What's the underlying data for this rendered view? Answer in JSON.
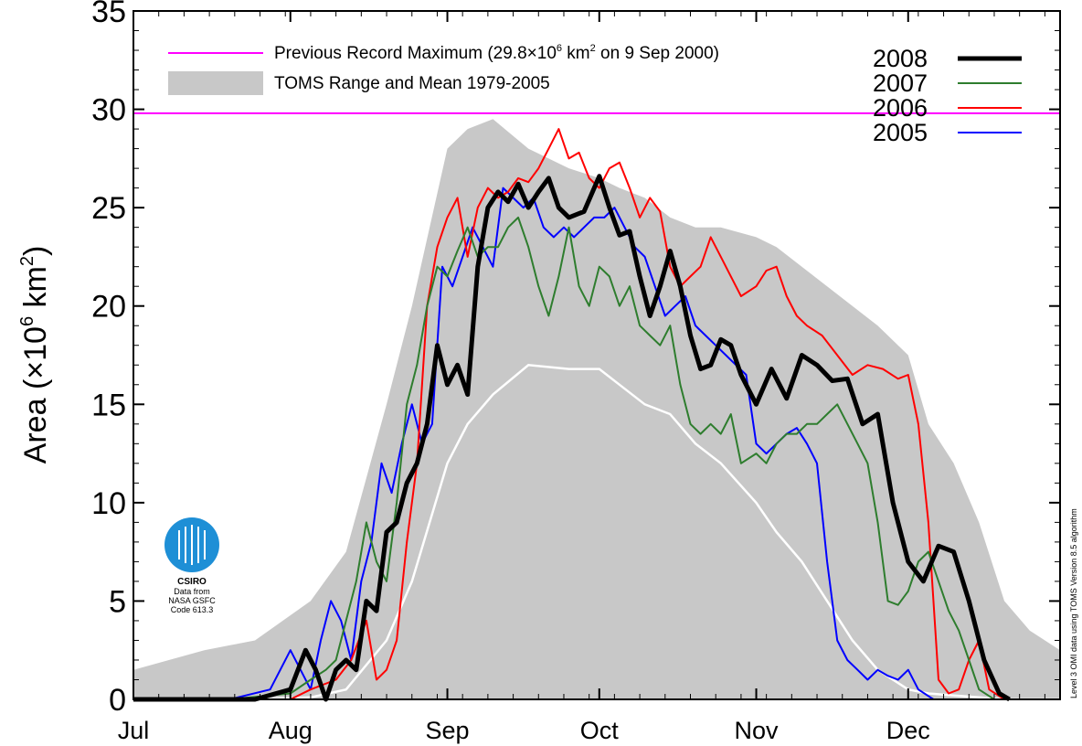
{
  "chart_data": {
    "type": "line",
    "title": "",
    "xlabel": "",
    "ylabel": "Area (×10⁶ km²)",
    "ylabel_parts": {
      "pre": "Area (×10",
      "exp1": "6",
      "mid": " km",
      "exp2": "2",
      "post": ")"
    },
    "ylim": [
      0,
      35
    ],
    "yticks": [
      "0",
      "5",
      "10",
      "15",
      "20",
      "25",
      "30",
      "35"
    ],
    "xlim": [
      "2008-07-01",
      "2008-12-31"
    ],
    "months": [
      {
        "label": "Jul",
        "date": "2008-07-01"
      },
      {
        "label": "Aug",
        "date": "2008-08-01"
      },
      {
        "label": "Sep",
        "date": "2008-09-01"
      },
      {
        "label": "Oct",
        "date": "2008-10-01"
      },
      {
        "label": "Nov",
        "date": "2008-11-01"
      },
      {
        "label": "Dec",
        "date": "2008-12-01"
      }
    ],
    "grid": false,
    "record_max": {
      "value": 29.8,
      "color": "#ff00ff",
      "label_parts": {
        "pre": "Previous Record Maximum (29.8×10",
        "exp1": "6",
        "mid": "  km",
        "exp2": "2",
        "post": " on 9 Sep 2000)"
      }
    },
    "toms_band": {
      "label": "TOMS Range and Mean 1979-2005",
      "color": "#c8c8c8",
      "mean_color": "#ffffff",
      "x": [
        "2008-07-01",
        "2008-07-15",
        "2008-07-25",
        "2008-08-05",
        "2008-08-12",
        "2008-08-20",
        "2008-08-25",
        "2008-09-01",
        "2008-09-05",
        "2008-09-10",
        "2008-09-17",
        "2008-09-25",
        "2008-10-01",
        "2008-10-05",
        "2008-10-10",
        "2008-10-15",
        "2008-10-20",
        "2008-10-25",
        "2008-11-01",
        "2008-11-05",
        "2008-11-10",
        "2008-11-15",
        "2008-11-20",
        "2008-11-25",
        "2008-12-01",
        "2008-12-05",
        "2008-12-10",
        "2008-12-15",
        "2008-12-20",
        "2008-12-25",
        "2008-12-31"
      ],
      "upper": [
        1.5,
        2.5,
        3,
        5,
        7.5,
        15,
        20,
        28,
        29,
        29.5,
        28,
        27,
        26.5,
        26,
        25.5,
        24.5,
        24,
        24,
        23.5,
        23,
        22,
        21,
        20,
        19,
        17.5,
        14,
        12,
        9,
        5,
        3.5,
        2.5
      ],
      "lower": [
        0,
        0,
        0,
        0,
        0,
        0,
        0,
        0,
        0,
        0,
        0,
        0,
        0,
        0,
        0,
        0,
        0,
        0,
        0,
        0,
        0,
        0,
        0,
        0,
        0,
        0,
        0,
        0,
        0,
        0,
        0
      ],
      "mean": [
        0,
        0,
        0,
        0.1,
        0.5,
        3,
        6,
        12,
        14,
        15.5,
        17,
        16.8,
        16.8,
        16,
        15,
        14.5,
        13,
        12,
        10,
        8.5,
        7,
        5,
        3,
        1.5,
        0.5,
        0.3,
        0.2,
        0.1,
        0,
        0,
        0
      ]
    },
    "series": [
      {
        "name": "2008",
        "color": "#000000",
        "width": 5,
        "x": [
          "2008-07-01",
          "2008-07-15",
          "2008-07-25",
          "2008-08-01",
          "2008-08-04",
          "2008-08-06",
          "2008-08-08",
          "2008-08-10",
          "2008-08-12",
          "2008-08-14",
          "2008-08-16",
          "2008-08-18",
          "2008-08-20",
          "2008-08-22",
          "2008-08-24",
          "2008-08-26",
          "2008-08-28",
          "2008-08-30",
          "2008-09-01",
          "2008-09-03",
          "2008-09-05",
          "2008-09-07",
          "2008-09-09",
          "2008-09-11",
          "2008-09-13",
          "2008-09-15",
          "2008-09-17",
          "2008-09-19",
          "2008-09-21",
          "2008-09-23",
          "2008-09-25",
          "2008-09-28",
          "2008-10-01",
          "2008-10-03",
          "2008-10-05",
          "2008-10-07",
          "2008-10-09",
          "2008-10-11",
          "2008-10-13",
          "2008-10-15",
          "2008-10-17",
          "2008-10-19",
          "2008-10-21",
          "2008-10-23",
          "2008-10-25",
          "2008-10-27",
          "2008-10-29",
          "2008-11-01",
          "2008-11-04",
          "2008-11-07",
          "2008-11-10",
          "2008-11-13",
          "2008-11-16",
          "2008-11-19",
          "2008-11-22",
          "2008-11-25",
          "2008-11-28",
          "2008-12-01",
          "2008-12-04",
          "2008-12-07",
          "2008-12-10",
          "2008-12-13",
          "2008-12-16",
          "2008-12-19",
          "2008-12-21"
        ],
        "values": [
          0,
          0,
          0,
          0.5,
          2.5,
          1.5,
          0,
          1.5,
          2,
          1.5,
          5,
          4.5,
          8.5,
          9,
          11,
          12,
          14,
          18,
          16,
          17,
          15.5,
          22,
          25,
          25.8,
          25.3,
          26.2,
          25,
          25.8,
          26.5,
          25,
          24.5,
          24.8,
          26.6,
          25,
          23.6,
          23.8,
          21.5,
          19.5,
          21,
          22.8,
          21,
          18.5,
          16.8,
          17,
          18.3,
          18,
          16.5,
          15,
          16.8,
          15.3,
          17.5,
          17,
          16.2,
          16.3,
          14,
          14.5,
          10,
          7,
          6,
          7.8,
          7.5,
          5,
          2,
          0.3,
          0
        ]
      },
      {
        "name": "2007",
        "color": "#2e7d2e",
        "width": 2,
        "x": [
          "2008-07-01",
          "2008-07-20",
          "2008-08-01",
          "2008-08-05",
          "2008-08-08",
          "2008-08-10",
          "2008-08-12",
          "2008-08-14",
          "2008-08-16",
          "2008-08-18",
          "2008-08-20",
          "2008-08-22",
          "2008-08-24",
          "2008-08-26",
          "2008-08-28",
          "2008-08-30",
          "2008-09-01",
          "2008-09-03",
          "2008-09-05",
          "2008-09-07",
          "2008-09-09",
          "2008-09-11",
          "2008-09-13",
          "2008-09-15",
          "2008-09-17",
          "2008-09-19",
          "2008-09-21",
          "2008-09-23",
          "2008-09-25",
          "2008-09-27",
          "2008-09-29",
          "2008-10-01",
          "2008-10-03",
          "2008-10-05",
          "2008-10-07",
          "2008-10-09",
          "2008-10-11",
          "2008-10-13",
          "2008-10-15",
          "2008-10-17",
          "2008-10-19",
          "2008-10-21",
          "2008-10-23",
          "2008-10-25",
          "2008-10-27",
          "2008-10-29",
          "2008-11-01",
          "2008-11-03",
          "2008-11-05",
          "2008-11-07",
          "2008-11-09",
          "2008-11-11",
          "2008-11-13",
          "2008-11-15",
          "2008-11-17",
          "2008-11-19",
          "2008-11-21",
          "2008-11-23",
          "2008-11-25",
          "2008-11-27",
          "2008-11-29",
          "2008-12-01",
          "2008-12-03",
          "2008-12-05",
          "2008-12-07",
          "2008-12-09",
          "2008-12-11",
          "2008-12-13",
          "2008-12-15",
          "2008-12-18"
        ],
        "values": [
          0,
          0,
          0.3,
          1,
          1.5,
          2,
          4,
          6,
          9,
          7,
          6,
          10,
          15,
          17,
          20,
          22,
          21.5,
          22.8,
          24,
          22.5,
          23,
          23,
          24,
          24.5,
          23,
          21,
          19.5,
          21.5,
          24,
          21,
          20,
          22,
          21.5,
          20,
          21,
          19,
          18.5,
          18,
          19,
          16,
          14,
          13.5,
          14,
          13.5,
          14.5,
          12,
          12.5,
          12,
          13,
          13.5,
          13.5,
          14,
          14,
          14.5,
          15,
          14,
          13,
          12,
          9,
          5,
          4.8,
          5.5,
          7,
          7.5,
          6,
          4.5,
          3.5,
          2,
          0.5,
          0
        ]
      },
      {
        "name": "2006",
        "color": "#ff0000",
        "width": 2,
        "x": [
          "2008-07-01",
          "2008-07-20",
          "2008-08-01",
          "2008-08-05",
          "2008-08-10",
          "2008-08-13",
          "2008-08-16",
          "2008-08-18",
          "2008-08-20",
          "2008-08-22",
          "2008-08-24",
          "2008-08-26",
          "2008-08-28",
          "2008-08-30",
          "2008-09-01",
          "2008-09-03",
          "2008-09-05",
          "2008-09-07",
          "2008-09-09",
          "2008-09-11",
          "2008-09-13",
          "2008-09-15",
          "2008-09-17",
          "2008-09-19",
          "2008-09-21",
          "2008-09-23",
          "2008-09-25",
          "2008-09-27",
          "2008-09-29",
          "2008-10-01",
          "2008-10-03",
          "2008-10-05",
          "2008-10-07",
          "2008-10-09",
          "2008-10-11",
          "2008-10-13",
          "2008-10-15",
          "2008-10-17",
          "2008-10-19",
          "2008-10-21",
          "2008-10-23",
          "2008-10-25",
          "2008-10-27",
          "2008-10-29",
          "2008-11-01",
          "2008-11-03",
          "2008-11-05",
          "2008-11-07",
          "2008-11-09",
          "2008-11-11",
          "2008-11-14",
          "2008-11-17",
          "2008-11-20",
          "2008-11-23",
          "2008-11-26",
          "2008-11-29",
          "2008-12-01",
          "2008-12-03",
          "2008-12-05",
          "2008-12-07",
          "2008-12-09",
          "2008-12-11",
          "2008-12-13",
          "2008-12-15",
          "2008-12-17",
          "2008-12-20"
        ],
        "values": [
          0,
          0,
          0,
          0.5,
          1,
          2,
          4,
          1,
          1.5,
          3,
          8,
          12,
          20,
          23,
          24.5,
          25.5,
          22.5,
          25,
          26,
          25.5,
          25.8,
          26.5,
          26.3,
          27,
          28,
          29,
          27.5,
          27.8,
          26.5,
          26,
          27,
          27.3,
          26,
          24.5,
          25.5,
          24.8,
          22,
          21,
          21.5,
          22,
          23.5,
          22.5,
          21.5,
          20.5,
          21,
          21.8,
          22,
          20.5,
          19.5,
          19,
          18.5,
          17.5,
          16.5,
          17,
          16.8,
          16.3,
          16.5,
          14,
          9,
          1,
          0.3,
          0.5,
          2,
          3,
          0.5,
          0
        ]
      },
      {
        "name": "2005",
        "color": "#0000ff",
        "width": 2,
        "x": [
          "2008-07-01",
          "2008-07-20",
          "2008-07-28",
          "2008-08-01",
          "2008-08-03",
          "2008-08-05",
          "2008-08-07",
          "2008-08-09",
          "2008-08-11",
          "2008-08-13",
          "2008-08-15",
          "2008-08-17",
          "2008-08-19",
          "2008-08-21",
          "2008-08-23",
          "2008-08-25",
          "2008-08-27",
          "2008-08-29",
          "2008-08-31",
          "2008-09-02",
          "2008-09-04",
          "2008-09-06",
          "2008-09-08",
          "2008-09-10",
          "2008-09-12",
          "2008-09-14",
          "2008-09-16",
          "2008-09-18",
          "2008-09-20",
          "2008-09-22",
          "2008-09-24",
          "2008-09-26",
          "2008-09-28",
          "2008-09-30",
          "2008-10-02",
          "2008-10-04",
          "2008-10-06",
          "2008-10-08",
          "2008-10-10",
          "2008-10-12",
          "2008-10-14",
          "2008-10-16",
          "2008-10-18",
          "2008-10-20",
          "2008-10-22",
          "2008-10-24",
          "2008-10-26",
          "2008-10-28",
          "2008-10-30",
          "2008-11-01",
          "2008-11-03",
          "2008-11-05",
          "2008-11-07",
          "2008-11-09",
          "2008-11-11",
          "2008-11-13",
          "2008-11-15",
          "2008-11-17",
          "2008-11-19",
          "2008-11-21",
          "2008-11-23",
          "2008-11-25",
          "2008-11-27",
          "2008-11-29",
          "2008-12-01",
          "2008-12-03",
          "2008-12-06",
          "2008-12-10",
          "2008-12-14",
          "2008-12-18"
        ],
        "values": [
          0,
          0,
          0.5,
          2.5,
          1.5,
          0.5,
          3,
          5,
          4,
          2,
          6,
          8,
          12,
          10.5,
          13,
          15,
          13,
          14,
          22,
          21,
          22.5,
          24,
          23,
          22,
          26,
          25.5,
          25,
          25.5,
          24,
          23.5,
          24,
          23.5,
          24,
          24.5,
          24.5,
          25,
          24,
          23,
          22.5,
          21,
          19.5,
          20,
          20.5,
          19,
          18.5,
          18,
          17.5,
          17,
          16.5,
          13,
          12.5,
          13,
          13.5,
          13.8,
          13,
          12,
          7,
          3,
          2,
          1.5,
          1,
          1.5,
          1.2,
          1,
          1.5,
          0.5,
          0,
          0,
          0,
          0
        ]
      }
    ],
    "legend_position": "top",
    "side_note": "Level 3 OMI data using TOMS Version 8.5 algorithm",
    "logo": {
      "name": "CSIRO",
      "credit": [
        "Data from",
        "NASA GSFC",
        "Code 613.3"
      ]
    }
  }
}
